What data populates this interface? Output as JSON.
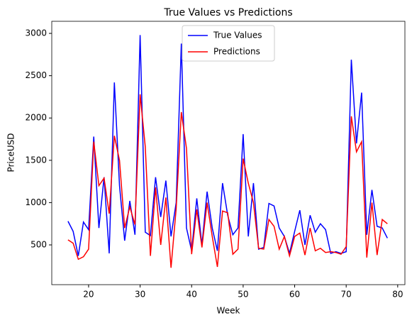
{
  "chart_data": {
    "type": "line",
    "title": "True Values vs Predictions",
    "x_label": "Week",
    "y_label": "PriceUSD",
    "x": [
      16,
      17,
      18,
      19,
      20,
      21,
      22,
      23,
      24,
      25,
      26,
      27,
      28,
      29,
      30,
      31,
      32,
      33,
      34,
      35,
      36,
      37,
      38,
      39,
      40,
      41,
      42,
      43,
      44,
      45,
      46,
      47,
      48,
      49,
      50,
      51,
      52,
      53,
      54,
      55,
      56,
      57,
      58,
      59,
      60,
      61,
      62,
      63,
      64,
      65,
      66,
      67,
      68,
      69,
      70,
      71,
      72,
      73,
      74,
      75,
      76,
      77,
      78
    ],
    "series": [
      {
        "name": "True Values",
        "color": "#0000ff",
        "values": [
          780,
          660,
          370,
          770,
          680,
          1780,
          700,
          1300,
          400,
          2420,
          1200,
          550,
          1020,
          620,
          2980,
          650,
          610,
          1300,
          830,
          1260,
          600,
          1000,
          2880,
          700,
          430,
          1050,
          500,
          1130,
          700,
          430,
          1230,
          850,
          620,
          700,
          1810,
          600,
          1230,
          450,
          470,
          990,
          960,
          700,
          600,
          400,
          660,
          910,
          500,
          850,
          650,
          750,
          680,
          400,
          420,
          400,
          420,
          2690,
          1700,
          2300,
          620,
          1150,
          720,
          700,
          580
        ]
      },
      {
        "name": "Predictions",
        "color": "#ff0000",
        "values": [
          560,
          520,
          330,
          360,
          450,
          1720,
          1200,
          1290,
          870,
          1790,
          1500,
          700,
          950,
          740,
          2280,
          1660,
          370,
          1180,
          500,
          1060,
          230,
          930,
          2070,
          1640,
          390,
          920,
          470,
          1000,
          600,
          240,
          900,
          880,
          390,
          450,
          1520,
          1230,
          1000,
          460,
          450,
          800,
          720,
          450,
          600,
          370,
          600,
          640,
          380,
          700,
          430,
          460,
          410,
          420,
          410,
          390,
          480,
          2020,
          1600,
          1720,
          350,
          1000,
          380,
          800,
          750
        ]
      }
    ],
    "xlim": [
      12.85,
      81.4
    ],
    "ylim": [
      30,
      3143
    ],
    "xticks": [
      20,
      30,
      40,
      50,
      60,
      70,
      80
    ],
    "yticks": [
      500,
      1000,
      1500,
      2000,
      2500,
      3000
    ],
    "legend": "upper center"
  }
}
